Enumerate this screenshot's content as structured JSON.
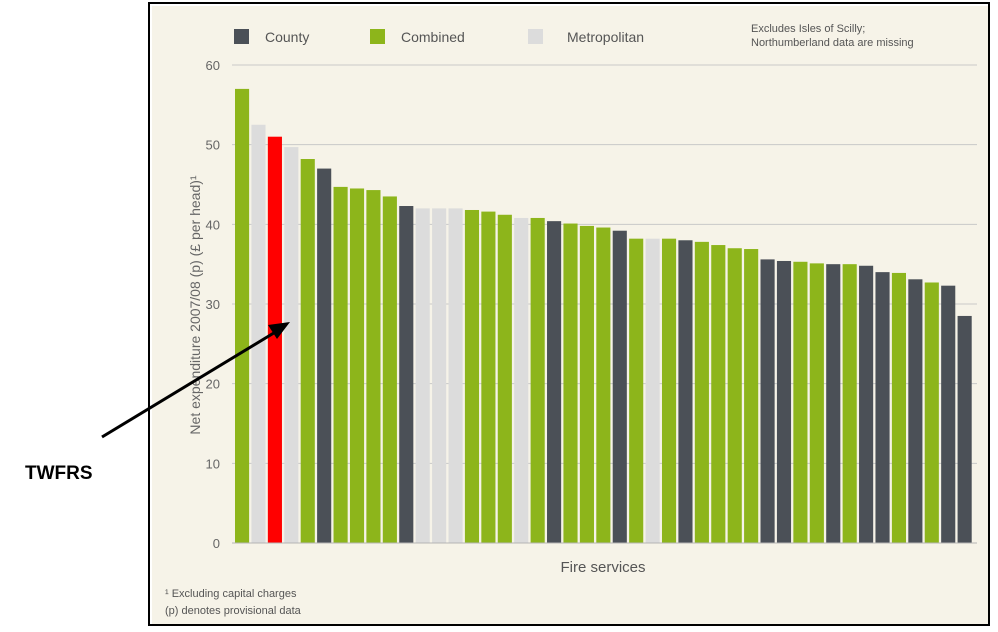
{
  "chart_data": {
    "type": "bar",
    "ylabel": "Net expenditure 2007/08 (p) (£ per head)¹",
    "xlabel": "Fire services",
    "ylim": [
      0,
      60
    ],
    "yticks": [
      0,
      10,
      20,
      30,
      40,
      50,
      60
    ],
    "grid": true,
    "legend_position": "top-left",
    "legend": [
      {
        "key": "county",
        "label": "County",
        "color": "#4b5057"
      },
      {
        "key": "combined",
        "label": "Combined",
        "color": "#8db51b"
      },
      {
        "key": "metropolitan",
        "label": "Metropolitan",
        "color": "#dcdcdc"
      }
    ],
    "highlight_color": "#ff0000",
    "values": [
      57,
      52.5,
      51,
      49.7,
      48.2,
      47,
      44.7,
      44.5,
      44.3,
      43.5,
      42.3,
      42,
      42,
      42,
      41.8,
      41.6,
      41.2,
      40.8,
      40.8,
      40.4,
      40.1,
      39.8,
      39.6,
      39.2,
      38.2,
      38.2,
      38.2,
      38,
      37.8,
      37.4,
      37,
      36.9,
      35.6,
      35.4,
      35.3,
      35.1,
      35,
      35,
      34.8,
      34,
      33.9,
      33.1,
      32.7,
      32.3,
      28.5
    ],
    "types": [
      "combined",
      "metropolitan",
      "highlight",
      "metropolitan",
      "combined",
      "county",
      "combined",
      "combined",
      "combined",
      "combined",
      "county",
      "metropolitan",
      "metropolitan",
      "metropolitan",
      "combined",
      "combined",
      "combined",
      "metropolitan",
      "combined",
      "county",
      "combined",
      "combined",
      "combined",
      "county",
      "combined",
      "metropolitan",
      "combined",
      "county",
      "combined",
      "combined",
      "combined",
      "combined",
      "county",
      "county",
      "combined",
      "combined",
      "county",
      "combined",
      "county",
      "county",
      "combined",
      "county",
      "combined",
      "county",
      "county"
    ],
    "note_top": [
      "Excludes Isles of Scilly;",
      "Northumberland data are missing"
    ],
    "footnotes": [
      "¹ Excluding capital charges",
      "(p) denotes provisional data"
    ]
  },
  "annotation": {
    "label": "TWFRS",
    "target_index": 2
  }
}
